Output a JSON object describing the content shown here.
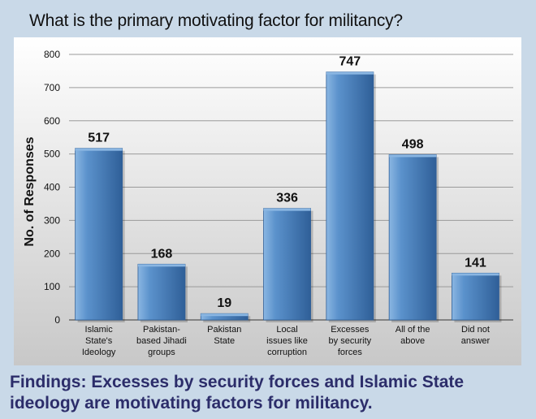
{
  "title": "What is the primary motivating factor for militancy?",
  "findings": "Findings: Excesses by security forces and Islamic State ideology are motivating factors for militancy.",
  "colors": {
    "bar": "#5b92cc",
    "bar_dark": "#2f5f98",
    "bar_light": "#8ab6e2",
    "plot_bg_top": "#ffffff",
    "plot_bg_bottom": "#c8c8c8",
    "page_bg": "#c9d9e8",
    "findings_text": "#2c2d6a"
  },
  "chart_data": {
    "type": "bar",
    "title": "What is the primary motivating factor for militancy?",
    "xlabel": "",
    "ylabel": "No. of Responses",
    "ylim": [
      0,
      800
    ],
    "yticks": [
      0,
      100,
      200,
      300,
      400,
      500,
      600,
      700,
      800
    ],
    "grid": true,
    "categories": [
      [
        "Islamic",
        "State's",
        "Ideology"
      ],
      [
        "Pakistan-",
        "based Jihadi",
        "groups"
      ],
      [
        "Pakistan",
        "State"
      ],
      [
        "Local",
        "issues like",
        "corruption"
      ],
      [
        "Excesses",
        "by security",
        "forces"
      ],
      [
        "All of the",
        "above"
      ],
      [
        "Did not",
        "answer"
      ]
    ],
    "values": [
      517,
      168,
      19,
      336,
      747,
      498,
      141
    ],
    "data_labels": [
      "517",
      "168",
      "19",
      "336",
      "747",
      "498",
      "141"
    ]
  }
}
